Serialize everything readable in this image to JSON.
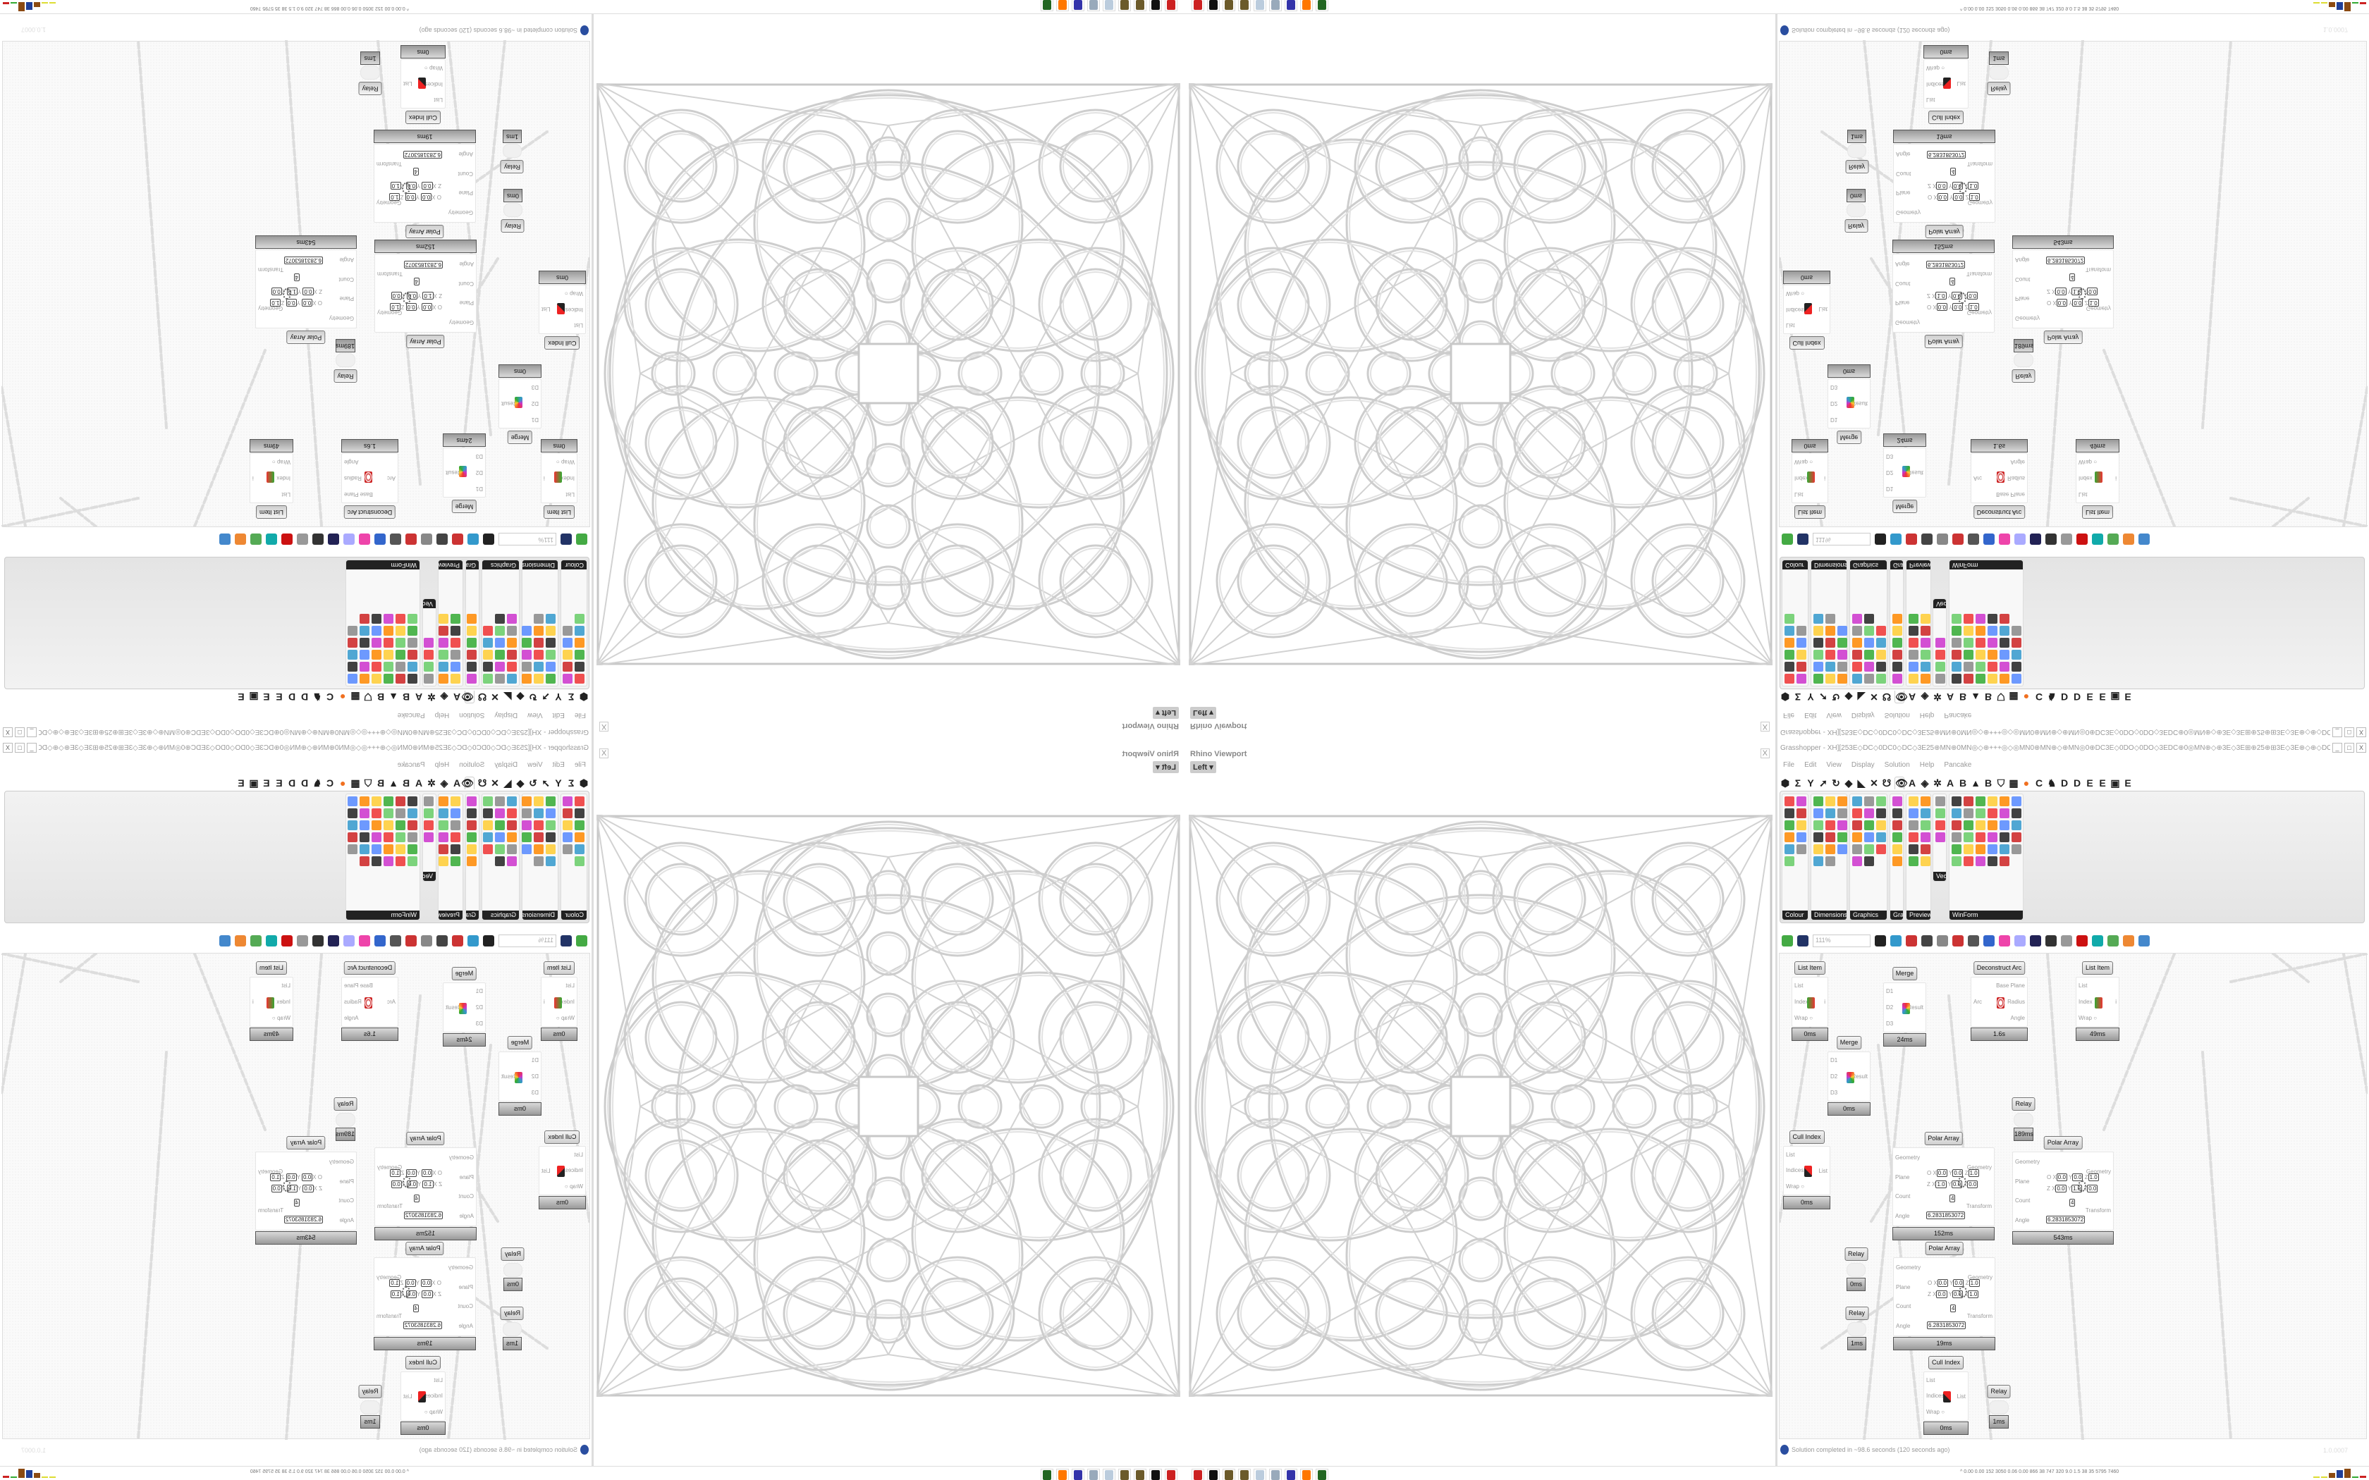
{
  "viewport": {
    "title": "Rhino Viewport",
    "view": "Left",
    "close": "X",
    "dropdown": "▾"
  },
  "grasshopper": {
    "title": "Grasshopper - XH][253E◇DC◇0DC0◇DC◇3E25⊕MN⊕0MN◎◇⊕+++◎◇◎MN0⊕MN⊕◇⊕MN◎0⊕DC3E◇0DO◇0DO◇3EDC⊕0◎MN⊕◇⊕3E◇3E⊞⊕25⊕⊞3E◇3E⊕◇⊕◇DO3E⊞⊕⊕DC...",
    "window_buttons": [
      "_",
      "□",
      "X"
    ],
    "menu": [
      "File",
      "Edit",
      "View",
      "Display",
      "Solution",
      "Help",
      "Pancake"
    ],
    "tab_icons": [
      {
        "name": "params",
        "glyph": "⬢"
      },
      {
        "name": "maths",
        "glyph": "Σ"
      },
      {
        "name": "sets",
        "glyph": "Y"
      },
      {
        "name": "vector",
        "glyph": "➚"
      },
      {
        "name": "curve",
        "glyph": "↻"
      },
      {
        "name": "surface",
        "glyph": "◆"
      },
      {
        "name": "mesh",
        "glyph": "◣"
      },
      {
        "name": "intersect",
        "glyph": "✕"
      },
      {
        "name": "transform",
        "glyph": "☋"
      },
      {
        "name": "display",
        "glyph": "👁",
        "selected": true
      },
      {
        "name": "addon-a",
        "glyph": "A"
      },
      {
        "name": "addon-leaf",
        "glyph": "◈"
      },
      {
        "name": "addon-gear",
        "glyph": "✲"
      },
      {
        "name": "addon-a2",
        "glyph": "A"
      },
      {
        "name": "addon-b",
        "glyph": "B"
      },
      {
        "name": "addon-mountain",
        "glyph": "▲"
      },
      {
        "name": "addon-b2",
        "glyph": "B"
      },
      {
        "name": "addon-shield",
        "glyph": "⛉"
      },
      {
        "name": "addon-grid",
        "glyph": "▦"
      },
      {
        "name": "addon-orange",
        "glyph": "●"
      },
      {
        "name": "addon-c",
        "glyph": "C"
      },
      {
        "name": "addon-bird",
        "glyph": "♞"
      },
      {
        "name": "addon-d",
        "glyph": "D"
      },
      {
        "name": "addon-d2",
        "glyph": "D"
      },
      {
        "name": "addon-e",
        "glyph": "E"
      },
      {
        "name": "addon-e2",
        "glyph": "E"
      },
      {
        "name": "addon-chip",
        "glyph": "▣"
      },
      {
        "name": "addon-e3",
        "glyph": "E"
      }
    ],
    "ribbon_groups": [
      {
        "label": "Colour",
        "cols": 2,
        "icons": [
          "colour-wheel",
          "gradient",
          "colour-cube",
          "colour-triangle",
          "colour-rgb",
          "hsl",
          "colour-sphere",
          "hsv",
          "colour-ball",
          "spectrum",
          "colour-swatch"
        ]
      },
      {
        "label": "Dimensions",
        "cols": 3,
        "icons": [
          "tag",
          "linear-dimension",
          "aligned-dimension",
          "text-tag",
          "line-dimension",
          "box-dimension",
          "colour-square",
          "serial-dimension",
          "ordinate",
          "grid-dimension",
          "angular-dimension",
          "radial-dimension",
          "arc-dimension",
          "curve-dimension",
          "leader",
          "marker",
          "triangle-dimension"
        ]
      },
      {
        "label": "Graphics",
        "cols": 3,
        "icons": [
          "circle",
          "text-t",
          "eye",
          "dots-circle",
          "text-t2",
          "rounded-square",
          "blur",
          "list",
          "gear",
          "ring",
          "link",
          "save",
          "sphere",
          "dotted-circle",
          "save-gear",
          "shade",
          "pictogram"
        ]
      },
      {
        "label": "Grap...",
        "cols": 1,
        "icons": [
          "histogram",
          "bar-legend",
          "pie",
          "line-graph",
          "images",
          "quick-graph"
        ]
      },
      {
        "label": "Preview",
        "cols": 2,
        "icons": [
          "custom-preview",
          "camera",
          "sphere-preview",
          "landscape",
          "blobs",
          "heart",
          "pink-blobs",
          "green-heart",
          "gradient-square",
          "hearts",
          "sl",
          "tree"
        ]
      },
      {
        "label": "Vect...",
        "cols": 1,
        "icons": [
          "numbers",
          "path",
          "arrows-red",
          "arrows-green"
        ]
      },
      {
        "label": "WinForm",
        "cols": 6,
        "icons": [
          "font-a",
          "form-list",
          "text-lines",
          "label",
          "graph",
          "panel",
          "hatch",
          "slider-bar",
          "slider-h",
          "grid",
          "pie-chart",
          "layout",
          "checkbox",
          "text-box",
          "tree-image",
          "pie-slice",
          "person",
          "table",
          "numeric",
          "package",
          "arrows",
          "font-b",
          "button-ok",
          "numeric-up",
          "slider-v",
          "list-box",
          "green-box",
          "calendar",
          "scroll-v",
          "progress",
          "bar-chart",
          "arrow-box",
          "grid2",
          "grid3",
          "grid4"
        ]
      }
    ],
    "canvas_toolbar": {
      "zoom": "111%",
      "icons": [
        "open-file",
        "save-file",
        "zoom-extents",
        "preview-eye",
        "bake-pen",
        "battery",
        "email",
        "gha",
        "document",
        "search",
        "package-help",
        "bulb",
        "twist",
        "bell",
        "ring",
        "red-gem",
        "cyan",
        "green",
        "orange",
        "blue-orb"
      ]
    },
    "nodes": [
      {
        "title": "List Item",
        "footer": "0ms",
        "in": [
          "List",
          "Index 0",
          "Wrap ○"
        ],
        "out": [
          "i"
        ],
        "icon": "list-item-icon"
      },
      {
        "title": "Merge",
        "footer": "24ms",
        "in": [
          "D1",
          "D2",
          "D3"
        ],
        "out": [
          "Result"
        ],
        "icon": "merge-icon"
      },
      {
        "title": "Merge",
        "footer": "0ms",
        "in": [
          "D1",
          "D2",
          "D3"
        ],
        "out": [
          "Result"
        ],
        "icon": "merge-icon"
      },
      {
        "title": "Deconstruct Arc",
        "footer": "1.6s",
        "in": [
          "Arc"
        ],
        "out": [
          "Base Plane",
          "Radius",
          "Angle"
        ],
        "icon": "arc-target-icon"
      },
      {
        "title": "List Item",
        "footer": "49ms",
        "in": [
          "List",
          "Index",
          "Wrap ○"
        ],
        "out": [
          "i"
        ],
        "icon": "list-item-icon"
      },
      {
        "title": "Relay",
        "footer": "189ms",
        "in": [],
        "out": [],
        "icon": "relay"
      },
      {
        "title": "Cull Index",
        "footer": "0ms",
        "in": [
          "List",
          "Indices 0",
          "Wrap ○"
        ],
        "out": [
          "List"
        ],
        "icon": "cull-icon"
      },
      {
        "title": "Polar Array",
        "footer": "152ms",
        "in": [
          "Geometry",
          "Plane",
          "Count",
          "Angle"
        ],
        "out": [
          "Geometry",
          "Transform"
        ],
        "plane": [
          [
            "O",
            "0.0",
            "0.0",
            "1.0"
          ],
          [
            "Z",
            "1.0",
            "0.0",
            "0.0"
          ]
        ],
        "count": "4",
        "angle": "6.2831853072",
        "icon": "polar-icon"
      },
      {
        "title": "Polar Array",
        "footer": "543ms",
        "in": [
          "Geometry",
          "Plane",
          "Count",
          "Angle"
        ],
        "out": [
          "Geometry",
          "Transform"
        ],
        "plane": [
          [
            "O",
            "0.0",
            "0.0",
            "1.0"
          ],
          [
            "Z",
            "0.0",
            "1.0",
            "0.0"
          ]
        ],
        "count": "4",
        "angle": "6.2831853072",
        "icon": "polar-icon"
      },
      {
        "title": "Relay",
        "footer": "0ms",
        "in": [],
        "out": [],
        "icon": "relay"
      },
      {
        "title": "Polar Array",
        "footer": "19ms",
        "in": [
          "Geometry",
          "Plane",
          "Count",
          "Angle"
        ],
        "out": [
          "Geometry",
          "Transform"
        ],
        "plane": [
          [
            "O",
            "0.0",
            "0.0",
            "1.0"
          ],
          [
            "Z",
            "0.0",
            "0.0",
            "1.0"
          ]
        ],
        "count": "4",
        "angle": "6.2831853072",
        "icon": "polar-icon"
      },
      {
        "title": "Relay",
        "footer": "1ms",
        "in": [],
        "out": [],
        "icon": "relay"
      },
      {
        "title": "Cull Index",
        "footer": "0ms",
        "in": [
          "List",
          "Indices",
          "Wrap ○"
        ],
        "out": [
          "List"
        ],
        "icon": "cull-icon"
      },
      {
        "title": "Relay",
        "footer": "1ms",
        "in": [],
        "out": [],
        "icon": "relay"
      }
    ],
    "status": "Solution completed in ~98.6 seconds (120 seconds ago)",
    "version": "1.0.0007"
  },
  "taskbar": {
    "apps": [
      "rhino-red",
      "inkscape",
      "pinecone",
      "pinecone-2",
      "notepad",
      "scroll",
      "floppy-64",
      "firefox",
      "terminal"
    ],
    "stats": "^  0.00 0.00 152 3050 0.06 0.00 866  38  747  320  9.0  1.5  38  35  5795 7460",
    "colors": {
      "accent": "#2a4ea0",
      "brown": "#8b4a12",
      "blue": "#1f3f99",
      "red": "#c22",
      "green": "#3a3"
    }
  }
}
